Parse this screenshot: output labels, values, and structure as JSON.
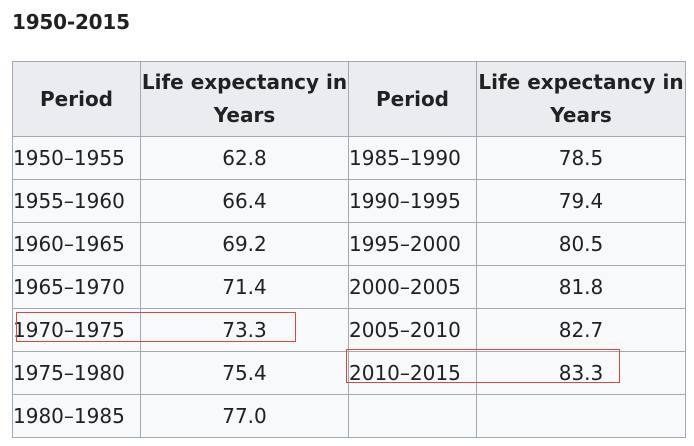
{
  "caption": "1950-2015",
  "table": {
    "headers": [
      "Period",
      "Life expectancy in Years",
      "Period",
      "Life expectancy in Years"
    ],
    "rows": [
      {
        "period_left": "1950–1955",
        "value_left": "62.8",
        "period_right": "1985–1990",
        "value_right": "78.5"
      },
      {
        "period_left": "1955–1960",
        "value_left": "66.4",
        "period_right": "1990–1995",
        "value_right": "79.4"
      },
      {
        "period_left": "1960–1965",
        "value_left": "69.2",
        "period_right": "1995–2000",
        "value_right": "80.5"
      },
      {
        "period_left": "1965–1970",
        "value_left": "71.4",
        "period_right": "2000–2005",
        "value_right": "81.8"
      },
      {
        "period_left": "1970–1975",
        "value_left": "73.3",
        "period_right": "2005–2010",
        "value_right": "82.7"
      },
      {
        "period_left": "1975–1980",
        "value_left": "75.4",
        "period_right": "2010–2015",
        "value_right": "83.3"
      },
      {
        "period_left": "1980–1985",
        "value_left": "77.0",
        "period_right": "",
        "value_right": ""
      }
    ]
  },
  "annotations": {
    "color": "#e0443f",
    "highlighted_rows": [
      "1970–1975",
      "2010–2015"
    ]
  }
}
